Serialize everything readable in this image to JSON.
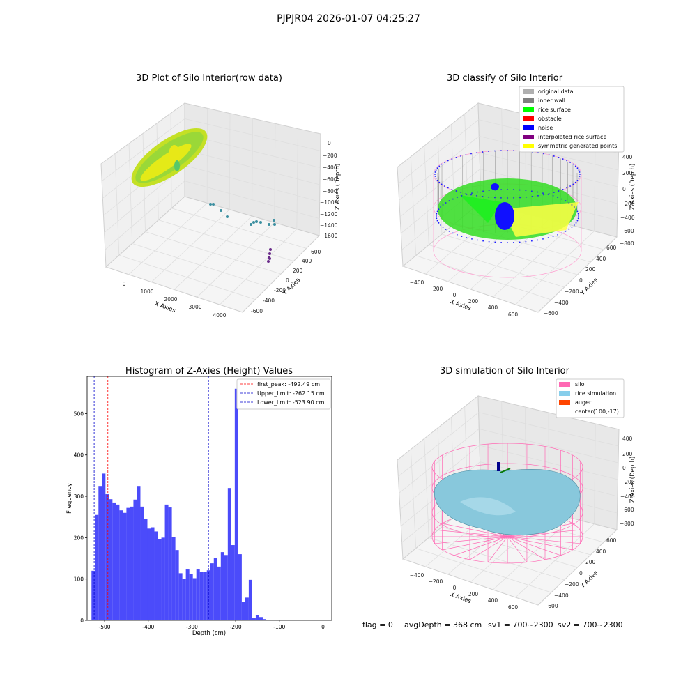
{
  "figure": {
    "suptitle": "PJPJR04 2026-01-07 04:25:27",
    "footer": {
      "flag": "flag = 0",
      "avg_depth": "avgDepth = 368 cm",
      "sv1": "sv1 = 700~2300",
      "sv2": "sv2 = 700~2300"
    }
  },
  "chart_data": [
    {
      "type": "scatter",
      "projection": "3d",
      "title": "3D Plot of Silo Interior(row data)",
      "xlabel": "X Axies",
      "ylabel": "Y Axies",
      "zlabel": "Z Axies (Depth)",
      "x_ticks": [
        "0",
        "1000",
        "2000",
        "3000",
        "4000"
      ],
      "y_ticks": [
        "-600",
        "-400",
        "-200",
        "0",
        "200",
        "400",
        "600"
      ],
      "z_ticks": [
        "0",
        "−200",
        "−400",
        "−600",
        "−800",
        "−1000",
        "−1200",
        "−1400",
        "−1600"
      ],
      "colors": {
        "points": "#b8e021",
        "sparse_points": "#3b8fa0",
        "deep_points": "#6a2c8a"
      },
      "grid": true
    },
    {
      "type": "scatter",
      "projection": "3d",
      "title": "3D classify of Silo Interior",
      "xlabel": "X Axies",
      "ylabel": "Y Axies",
      "zlabel": "Z Axies (Depth)",
      "x_ticks": [
        "−400",
        "−200",
        "0",
        "200",
        "400",
        "600"
      ],
      "y_ticks": [
        "−600",
        "−400",
        "−200",
        "0",
        "200",
        "400",
        "600"
      ],
      "z_ticks": [
        "400",
        "200",
        "0",
        "−200",
        "−400",
        "−600",
        "−800"
      ],
      "legend_position": "top-right",
      "legend": [
        {
          "label": "original data",
          "color": "#b0b0b0"
        },
        {
          "label": "inner wall",
          "color": "#808080"
        },
        {
          "label": "rice surface",
          "color": "#00ff00"
        },
        {
          "label": "obstacle",
          "color": "#ff0000"
        },
        {
          "label": "noise",
          "color": "#0000ff"
        },
        {
          "label": "interpolated rice surface",
          "color": "#800080"
        },
        {
          "label": "symmetric generated points",
          "color": "#ffff00"
        }
      ],
      "silo_color": "#ff8fc8",
      "grid": true
    },
    {
      "type": "bar",
      "subtype": "histogram",
      "title": "Histogram of Z-Axies (Height) Values",
      "xlabel": "Depth (cm)",
      "ylabel": "Frequency",
      "xlim": [
        -540,
        20
      ],
      "ylim": [
        0,
        590
      ],
      "x_ticks": [
        -500,
        -400,
        -300,
        -200,
        -100,
        0
      ],
      "y_ticks": [
        0,
        100,
        200,
        300,
        400,
        500
      ],
      "bar_color": "#4b4bfa",
      "bins": [
        {
          "x0": -530,
          "x1": -522,
          "value": 120
        },
        {
          "x0": -522,
          "x1": -514,
          "value": 255
        },
        {
          "x0": -514,
          "x1": -506,
          "value": 325
        },
        {
          "x0": -506,
          "x1": -498,
          "value": 355
        },
        {
          "x0": -498,
          "x1": -490,
          "value": 305
        },
        {
          "x0": -490,
          "x1": -482,
          "value": 293
        },
        {
          "x0": -482,
          "x1": -474,
          "value": 285
        },
        {
          "x0": -474,
          "x1": -466,
          "value": 280
        },
        {
          "x0": -466,
          "x1": -458,
          "value": 266
        },
        {
          "x0": -458,
          "x1": -450,
          "value": 260
        },
        {
          "x0": -450,
          "x1": -442,
          "value": 272
        },
        {
          "x0": -442,
          "x1": -434,
          "value": 275
        },
        {
          "x0": -434,
          "x1": -426,
          "value": 292
        },
        {
          "x0": -426,
          "x1": -418,
          "value": 325
        },
        {
          "x0": -418,
          "x1": -410,
          "value": 275
        },
        {
          "x0": -410,
          "x1": -402,
          "value": 245
        },
        {
          "x0": -402,
          "x1": -394,
          "value": 222
        },
        {
          "x0": -394,
          "x1": -386,
          "value": 225
        },
        {
          "x0": -386,
          "x1": -378,
          "value": 215
        },
        {
          "x0": -378,
          "x1": -370,
          "value": 196
        },
        {
          "x0": -370,
          "x1": -362,
          "value": 200
        },
        {
          "x0": -362,
          "x1": -354,
          "value": 280
        },
        {
          "x0": -354,
          "x1": -346,
          "value": 273
        },
        {
          "x0": -346,
          "x1": -338,
          "value": 202
        },
        {
          "x0": -338,
          "x1": -330,
          "value": 170
        },
        {
          "x0": -330,
          "x1": -322,
          "value": 114
        },
        {
          "x0": -322,
          "x1": -314,
          "value": 100
        },
        {
          "x0": -314,
          "x1": -306,
          "value": 123
        },
        {
          "x0": -306,
          "x1": -298,
          "value": 112
        },
        {
          "x0": -298,
          "x1": -290,
          "value": 102
        },
        {
          "x0": -290,
          "x1": -282,
          "value": 123
        },
        {
          "x0": -282,
          "x1": -274,
          "value": 118
        },
        {
          "x0": -274,
          "x1": -266,
          "value": 118
        },
        {
          "x0": -266,
          "x1": -258,
          "value": 121
        },
        {
          "x0": -258,
          "x1": -250,
          "value": 138
        },
        {
          "x0": -250,
          "x1": -242,
          "value": 150
        },
        {
          "x0": -242,
          "x1": -234,
          "value": 130
        },
        {
          "x0": -234,
          "x1": -226,
          "value": 165
        },
        {
          "x0": -226,
          "x1": -218,
          "value": 158
        },
        {
          "x0": -218,
          "x1": -210,
          "value": 320
        },
        {
          "x0": -210,
          "x1": -202,
          "value": 182
        },
        {
          "x0": -202,
          "x1": -194,
          "value": 560
        },
        {
          "x0": -194,
          "x1": -186,
          "value": 160
        },
        {
          "x0": -186,
          "x1": -178,
          "value": 45
        },
        {
          "x0": -178,
          "x1": -170,
          "value": 55
        },
        {
          "x0": -170,
          "x1": -162,
          "value": 98
        },
        {
          "x0": -162,
          "x1": -154,
          "value": 5
        },
        {
          "x0": -154,
          "x1": -146,
          "value": 12
        },
        {
          "x0": -146,
          "x1": -138,
          "value": 8
        },
        {
          "x0": -138,
          "x1": -130,
          "value": 3
        }
      ],
      "vlines": [
        {
          "x": -492.49,
          "color": "#ff0000",
          "label": "first_peak: -492.49 cm"
        },
        {
          "x": -262.15,
          "color": "#0000cc",
          "label": "Upper_limit: -262.15 cm"
        },
        {
          "x": -523.9,
          "color": "#0000cc",
          "label": "Lower_limit: -523.90 cm"
        }
      ],
      "legend_position": "top-right",
      "grid": false
    },
    {
      "type": "surface",
      "projection": "3d",
      "title": "3D simulation of Silo Interior",
      "xlabel": "X Axies",
      "ylabel": "Y Axies",
      "zlabel": "Z Axies (Depth)",
      "x_ticks": [
        "−400",
        "−200",
        "0",
        "200",
        "400",
        "600"
      ],
      "y_ticks": [
        "−600",
        "−400",
        "−200",
        "0",
        "200",
        "400",
        "600"
      ],
      "z_ticks": [
        "400",
        "200",
        "0",
        "−200",
        "−400",
        "−600",
        "−800"
      ],
      "legend_position": "top-right",
      "legend": [
        {
          "label": "silo",
          "color": "#ff69b4"
        },
        {
          "label": "rice simulation",
          "color": "#87ceeb"
        },
        {
          "label": "auger",
          "color": "#ff4500"
        },
        {
          "label": "center(100,-17)",
          "color": ""
        }
      ],
      "grid": true
    }
  ]
}
